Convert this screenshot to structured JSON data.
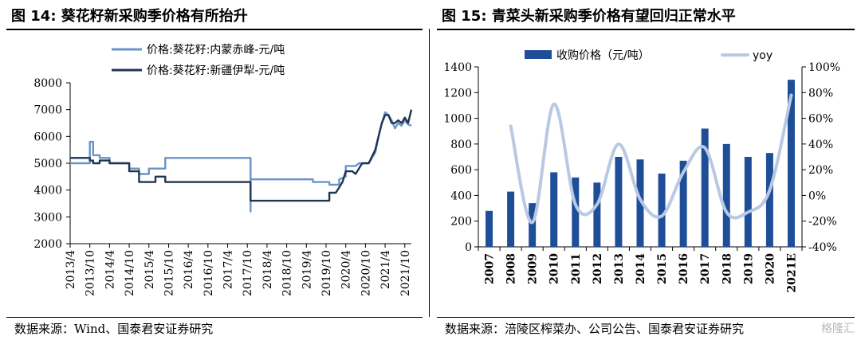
{
  "left": {
    "title": "图 14: 葵花籽新采购季价格有所抬升",
    "source": "数据来源：Wind、国泰君安证券研究"
  },
  "right": {
    "title": "图 15: 青菜头新采购季价格有望回归正常水平",
    "source": "数据来源：涪陵区榨菜办、公司公告、国泰君安证券研究"
  },
  "watermark": "格隆汇",
  "chart_data": [
    {
      "type": "line",
      "title": "",
      "ylim": [
        2000,
        8000
      ],
      "yticks": [
        2000,
        3000,
        4000,
        5000,
        6000,
        7000,
        8000
      ],
      "x_ticks": [
        "2013/4",
        "2013/10",
        "2014/4",
        "2014/10",
        "2015/4",
        "2015/10",
        "2016/4",
        "2016/10",
        "2017/4",
        "2017/10",
        "2018/4",
        "2018/10",
        "2019/4",
        "2019/10",
        "2020/4",
        "2020/10",
        "2021/4",
        "2021/10"
      ],
      "legend_position": "top-center",
      "grid": false,
      "series": [
        {
          "name": "价格:葵花籽:内蒙赤峰-元/吨",
          "color": "#6a93c8",
          "points": [
            [
              "2013/4",
              5000
            ],
            [
              "2013/10",
              5000
            ],
            [
              "2013/10",
              5800
            ],
            [
              "2013/11",
              5800
            ],
            [
              "2013/11",
              5300
            ],
            [
              "2014/1",
              5300
            ],
            [
              "2014/1",
              5200
            ],
            [
              "2014/4",
              5200
            ],
            [
              "2014/4",
              5000
            ],
            [
              "2014/10",
              5000
            ],
            [
              "2014/10",
              4800
            ],
            [
              "2015/1",
              4800
            ],
            [
              "2015/1",
              4600
            ],
            [
              "2015/4",
              4600
            ],
            [
              "2015/4",
              4800
            ],
            [
              "2015/9",
              4800
            ],
            [
              "2015/9",
              5200
            ],
            [
              "2017/11",
              5200
            ],
            [
              "2017/11",
              3200
            ],
            [
              "2017/11",
              4400
            ],
            [
              "2019/6",
              4400
            ],
            [
              "2019/6",
              4300
            ],
            [
              "2019/11",
              4300
            ],
            [
              "2019/11",
              4200
            ],
            [
              "2020/2",
              4200
            ],
            [
              "2020/2",
              4400
            ],
            [
              "2020/4",
              4500
            ],
            [
              "2020/4",
              4900
            ],
            [
              "2020/7",
              4900
            ],
            [
              "2020/8",
              5000
            ],
            [
              "2020/11",
              5000
            ],
            [
              "2021/1",
              5400
            ],
            [
              "2021/2",
              6000
            ],
            [
              "2021/3",
              6500
            ],
            [
              "2021/4",
              6900
            ],
            [
              "2021/5",
              6800
            ],
            [
              "2021/6",
              6600
            ],
            [
              "2021/7",
              6300
            ],
            [
              "2021/8",
              6500
            ],
            [
              "2021/9",
              6400
            ],
            [
              "2021/10",
              6600
            ],
            [
              "2021/11",
              6450
            ],
            [
              "2021/12",
              6400
            ]
          ]
        },
        {
          "name": "价格:葵花籽:新疆伊犁-元/吨",
          "color": "#1f3553",
          "points": [
            [
              "2013/4",
              5200
            ],
            [
              "2013/10",
              5200
            ],
            [
              "2013/10",
              5100
            ],
            [
              "2013/11",
              5100
            ],
            [
              "2013/11",
              5000
            ],
            [
              "2014/1",
              5000
            ],
            [
              "2014/1",
              5100
            ],
            [
              "2014/4",
              5100
            ],
            [
              "2014/4",
              5000
            ],
            [
              "2014/10",
              5000
            ],
            [
              "2014/10",
              4700
            ],
            [
              "2015/1",
              4700
            ],
            [
              "2015/1",
              4300
            ],
            [
              "2015/6",
              4300
            ],
            [
              "2015/6",
              4500
            ],
            [
              "2015/9",
              4500
            ],
            [
              "2015/9",
              4300
            ],
            [
              "2017/11",
              4300
            ],
            [
              "2017/11",
              3600
            ],
            [
              "2019/11",
              3600
            ],
            [
              "2019/11",
              3900
            ],
            [
              "2020/1",
              3900
            ],
            [
              "2020/2",
              4100
            ],
            [
              "2020/3",
              4300
            ],
            [
              "2020/4",
              4700
            ],
            [
              "2020/6",
              4700
            ],
            [
              "2020/7",
              4600
            ],
            [
              "2020/8",
              4800
            ],
            [
              "2020/9",
              5000
            ],
            [
              "2020/11",
              5000
            ],
            [
              "2021/1",
              5500
            ],
            [
              "2021/2",
              6000
            ],
            [
              "2021/3",
              6500
            ],
            [
              "2021/4",
              6800
            ],
            [
              "2021/5",
              6800
            ],
            [
              "2021/6",
              6500
            ],
            [
              "2021/7",
              6500
            ],
            [
              "2021/8",
              6600
            ],
            [
              "2021/9",
              6500
            ],
            [
              "2021/10",
              6700
            ],
            [
              "2021/11",
              6500
            ],
            [
              "2021/12",
              7000
            ]
          ]
        }
      ]
    },
    {
      "type": "bar",
      "title": "",
      "categories": [
        "2007",
        "2008",
        "2009",
        "2010",
        "2011",
        "2012",
        "2013",
        "2014",
        "2015",
        "2016",
        "2017",
        "2018",
        "2019",
        "2020",
        "2021E"
      ],
      "ylim": [
        0,
        1400
      ],
      "yticks": [
        0,
        200,
        400,
        600,
        800,
        1000,
        1200,
        1400
      ],
      "y2lim": [
        -40,
        100
      ],
      "y2ticks": [
        "-40%",
        "-20%",
        "0%",
        "20%",
        "40%",
        "60%",
        "80%",
        "100%"
      ],
      "legend_position": "top",
      "grid": false,
      "series": [
        {
          "name": "收购价格（元/吨）",
          "type": "bar",
          "axis": "left",
          "color": "#1f4e99",
          "values": [
            280,
            430,
            340,
            580,
            540,
            500,
            700,
            680,
            570,
            670,
            920,
            800,
            700,
            730,
            1300
          ]
        },
        {
          "name": "yoy",
          "type": "line",
          "axis": "right",
          "color": "#b9c9e3",
          "values": [
            null,
            54,
            -21,
            71,
            -7,
            -7,
            40,
            -3,
            -16,
            18,
            37,
            -13,
            -13,
            4,
            78
          ]
        }
      ]
    }
  ]
}
